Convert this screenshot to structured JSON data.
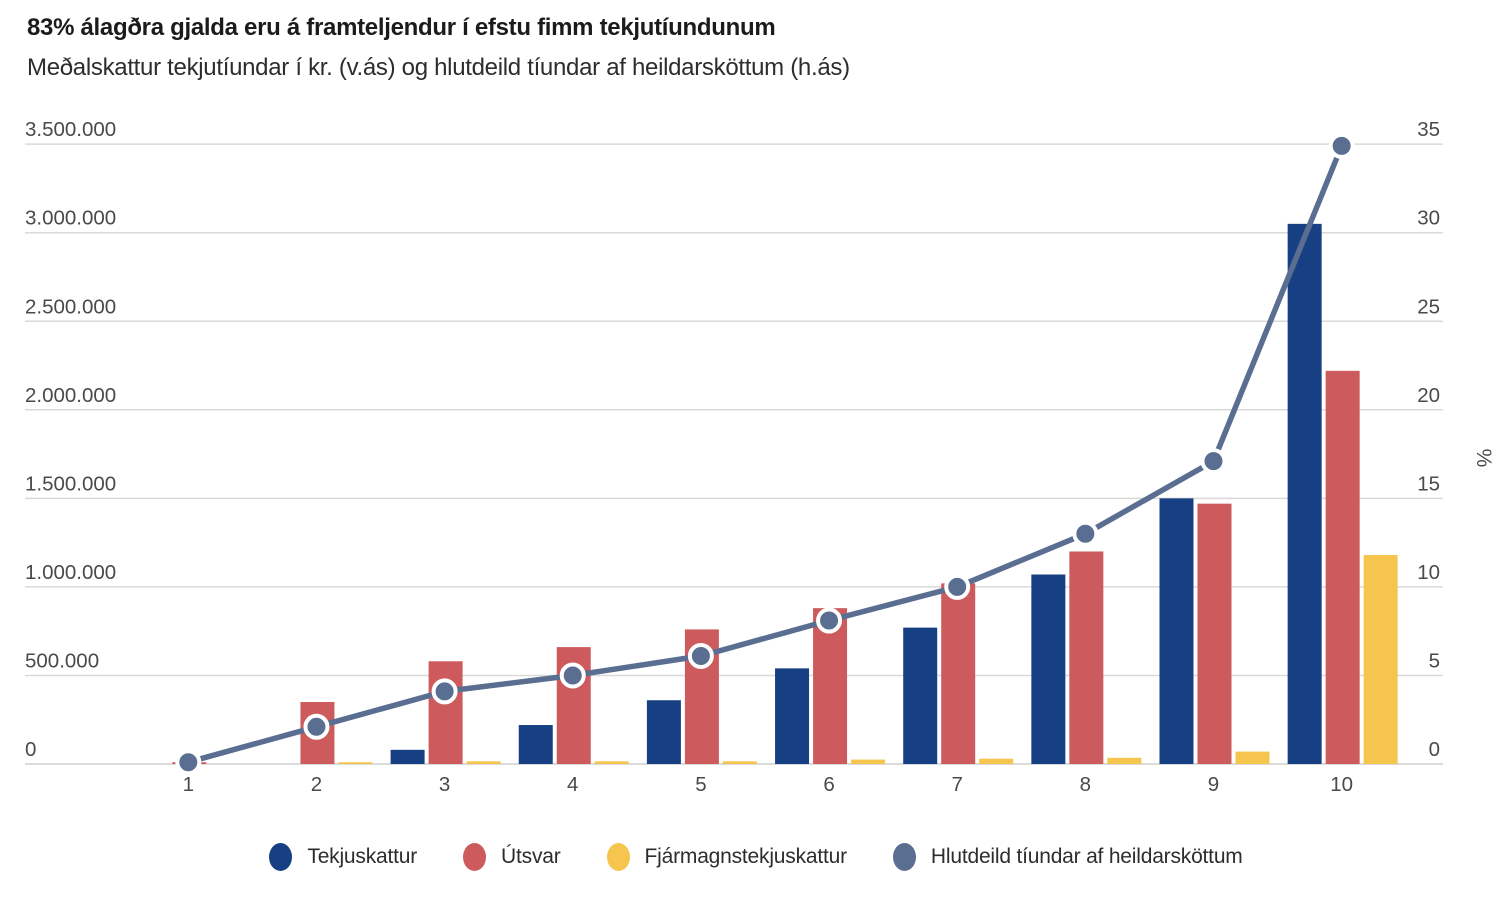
{
  "title": "83% álagðra gjalda eru á framteljendur í efstu fimm tekjutíundunum",
  "subtitle": "Meðalskattur tekjutíundar í kr. (v.ás) og hlutdeild tíundar af heildarsköttum (h.ás)",
  "colors": {
    "tekjuskattur": "#164083",
    "utsvar": "#cd5b5e",
    "fjarmagnstekjuskattur": "#f5c54e",
    "hlutdeild_line": "#5a6e91",
    "gridline": "#d9d9d9",
    "baseline": "#cfcfcf",
    "axis_text": "#4a4a4a",
    "title_text": "#1b1b1b"
  },
  "chart_data": {
    "type": "bar",
    "subtype": "grouped-bars-with-line",
    "categories": [
      "1",
      "2",
      "3",
      "4",
      "5",
      "6",
      "7",
      "8",
      "9",
      "10"
    ],
    "series": [
      {
        "name": "Tekjuskattur",
        "type": "bar",
        "axis": "left",
        "color": "#164083",
        "values": [
          0,
          0,
          80000,
          220000,
          360000,
          540000,
          770000,
          1070000,
          1500000,
          3050000
        ]
      },
      {
        "name": "Útsvar",
        "type": "bar",
        "axis": "left",
        "color": "#cd5b5e",
        "values": [
          10000,
          350000,
          580000,
          660000,
          760000,
          880000,
          1020000,
          1200000,
          1470000,
          2220000
        ]
      },
      {
        "name": "Fjármagnstekjuskattur",
        "type": "bar",
        "axis": "left",
        "color": "#f5c54e",
        "values": [
          0,
          10000,
          15000,
          15000,
          15000,
          25000,
          30000,
          35000,
          70000,
          1180000
        ]
      },
      {
        "name": "Hlutdeild tíundar af heildarsköttum",
        "type": "line",
        "axis": "right",
        "color": "#5a6e91",
        "values": [
          0.1,
          2.1,
          4.1,
          5.0,
          6.1,
          8.1,
          10.0,
          13.0,
          17.1,
          34.9
        ]
      }
    ],
    "left_axis": {
      "min": 0,
      "max": 3500000,
      "tick_step": 500000,
      "ticks": [
        "0",
        "500.000",
        "1.000.000",
        "1.500.000",
        "2.000.000",
        "2.500.000",
        "3.000.000",
        "3.500.000"
      ]
    },
    "right_axis": {
      "min": 0,
      "max": 35,
      "tick_step": 5,
      "label": "%",
      "ticks": [
        "0",
        "5",
        "10",
        "15",
        "20",
        "25",
        "30",
        "35"
      ]
    },
    "grid": true,
    "legend_position": "bottom"
  }
}
